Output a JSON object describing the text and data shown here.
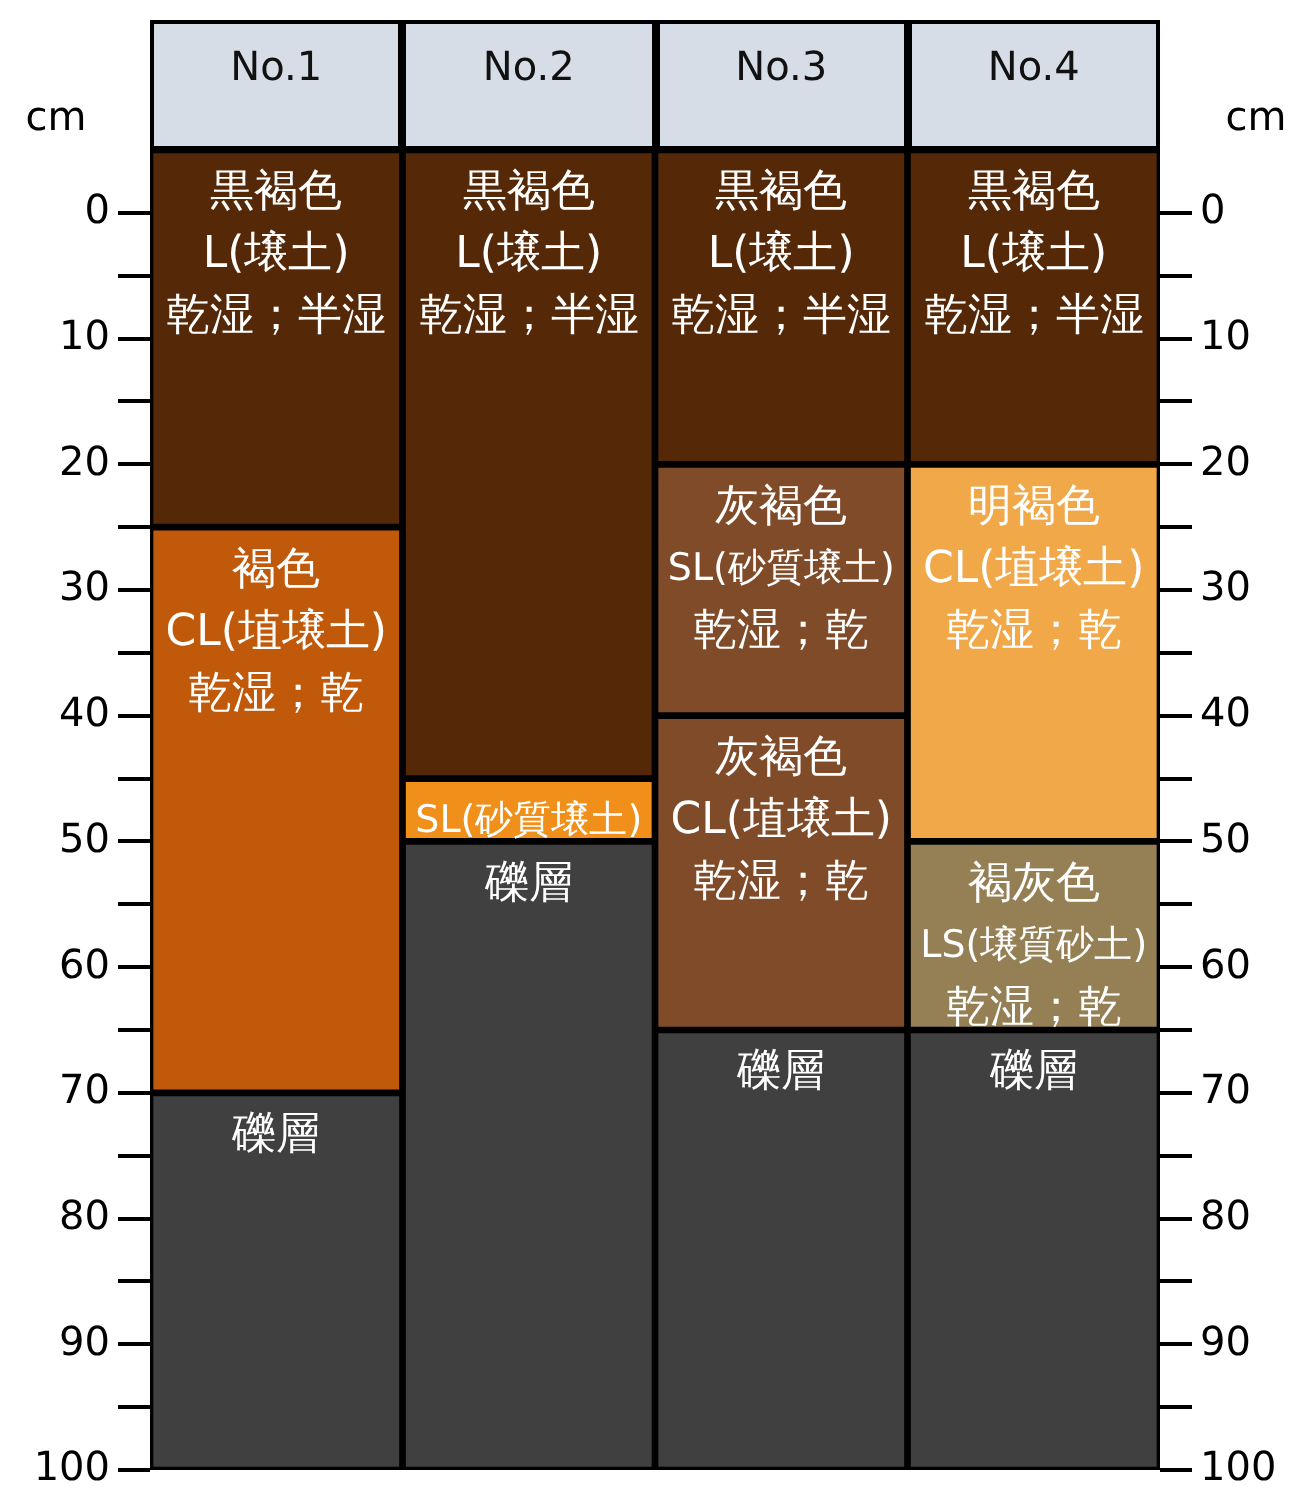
{
  "chart_data": {
    "type": "bar",
    "categories": [
      "No.1",
      "No.2",
      "No.3",
      "No.4"
    ],
    "ylabel": "cm",
    "y2label": "cm",
    "ylim": [
      100,
      -5
    ],
    "y2lim": [
      100,
      -5
    ],
    "yticks": [
      0,
      {
        "value": 5,
        "label": null
      },
      10,
      {
        "value": 15,
        "label": null
      },
      20,
      {
        "value": 25,
        "label": null
      },
      30,
      {
        "value": 35,
        "label": null
      },
      40,
      {
        "value": 45,
        "label": null
      },
      50,
      {
        "value": 55,
        "label": null
      },
      60,
      {
        "value": 65,
        "label": null
      },
      70,
      {
        "value": 75,
        "label": null
      },
      80,
      {
        "value": 85,
        "label": null
      },
      90,
      {
        "value": 95,
        "label": null
      },
      100
    ],
    "y2ticks": [
      0,
      {
        "value": 5,
        "label": null
      },
      10,
      {
        "value": 15,
        "label": null
      },
      20,
      {
        "value": 25,
        "label": null
      },
      30,
      {
        "value": 35,
        "label": null
      },
      40,
      {
        "value": 45,
        "label": null
      },
      50,
      {
        "value": 55,
        "label": null
      },
      60,
      {
        "value": 65,
        "label": null
      },
      70,
      {
        "value": 75,
        "label": null
      },
      80,
      {
        "value": 85,
        "label": null
      },
      90,
      {
        "value": 95,
        "label": null
      },
      100
    ],
    "series": [
      {
        "base": [
          -5,
          -5,
          -5,
          -5
        ],
        "values": [
          30,
          50,
          25,
          25
        ],
        "colors": [
          "#552908",
          "#552908",
          "#552908",
          "#552908"
        ],
        "value_labels": [
          "黒褐色\nL(壌土)\n乾湿；半湿",
          "黒褐色\nL(壌土)\n乾湿；半湿",
          "黒褐色\nL(壌土)\n乾湿；半湿",
          "黒褐色\nL(壌土)\n乾湿；半湿"
        ]
      },
      {
        "base": [
          25,
          45,
          20,
          20
        ],
        "values": [
          45,
          5,
          20,
          30
        ],
        "colors": [
          "#c05a0a",
          "#f0901a",
          "#7f4b28",
          "#f0a848"
        ],
        "value_labels": [
          "褐色\nCL(埴壌土)\n乾湿；乾",
          "SL(砂質壌土)",
          "灰褐色\nSL(砂質壌土)\n乾湿；乾",
          "明褐色\nCL(埴壌土)\n乾湿；乾"
        ]
      },
      {
        "base": [
          70,
          50,
          40,
          50
        ],
        "values": [
          30,
          50,
          25,
          15
        ],
        "colors": [
          "#404040",
          "#404040",
          "#7f4b28",
          "#958055"
        ],
        "value_labels": [
          "礫層",
          "礫層",
          "灰褐色\nCL(埴壌土)\n乾湿；乾",
          "褐灰色\nLS(壌質砂土)\n乾湿；乾"
        ]
      },
      {
        "base": [
          null,
          null,
          65,
          65
        ],
        "values": [
          null,
          null,
          35,
          35
        ],
        "colors": [
          "#404040",
          "#404040",
          "#404040",
          "#404040"
        ],
        "value_labels": [
          null,
          null,
          "礫層",
          "礫層"
        ]
      }
    ]
  }
}
